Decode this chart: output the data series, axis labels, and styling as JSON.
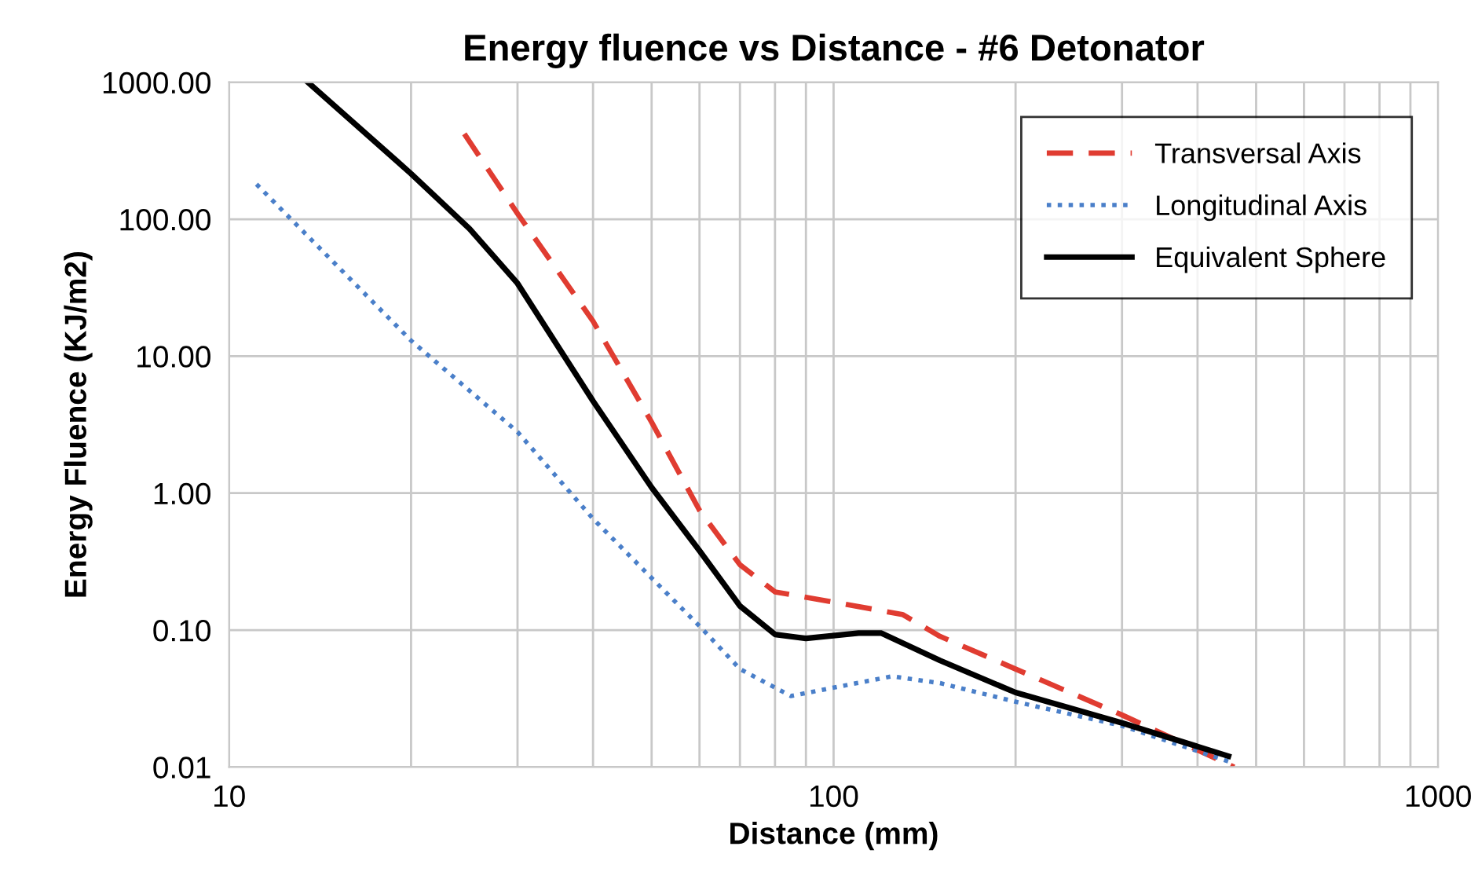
{
  "chart_data": {
    "type": "line",
    "title": "Energy fluence vs Distance - #6 Detonator",
    "xlabel": "Distance (mm)",
    "ylabel": "Energy Fluence (KJ/m2)",
    "log": "xy",
    "grid": true,
    "legend": "top right",
    "xlim": [
      10,
      1000
    ],
    "ylim": [
      0.01,
      1000
    ],
    "xticks": [
      10,
      {
        "value": 20,
        "label": null
      },
      {
        "value": 30,
        "label": null
      },
      {
        "value": 40,
        "label": null
      },
      {
        "value": 50,
        "label": null
      },
      {
        "value": 60,
        "label": null
      },
      {
        "value": 70,
        "label": null
      },
      {
        "value": 80,
        "label": null
      },
      {
        "value": 90,
        "label": null
      },
      100,
      {
        "value": 200,
        "label": null
      },
      {
        "value": 300,
        "label": null
      },
      {
        "value": 400,
        "label": null
      },
      {
        "value": 500,
        "label": null
      },
      {
        "value": 600,
        "label": null
      },
      {
        "value": 700,
        "label": null
      },
      {
        "value": 800,
        "label": null
      },
      {
        "value": 900,
        "label": null
      },
      1000
    ],
    "yticks": [
      {
        "value": 0.01,
        "label": "0.01"
      },
      {
        "value": 0.1,
        "label": "0.10"
      },
      {
        "value": 1,
        "label": "1.00"
      },
      {
        "value": 10,
        "label": "10.00"
      },
      {
        "value": 100,
        "label": "100.00"
      },
      {
        "value": 1000,
        "label": "1000.00"
      }
    ],
    "series": [
      {
        "name": "Transversal Axis",
        "color": "#e03c31",
        "line_style": "dashed",
        "x": [
          24.5,
          30,
          40,
          50,
          60,
          70,
          80,
          100,
          130,
          150,
          200,
          300,
          460
        ],
        "values": [
          420,
          110,
          18,
          3.3,
          0.75,
          0.3,
          0.19,
          0.16,
          0.13,
          0.09,
          0.052,
          0.024,
          0.01
        ]
      },
      {
        "name": "Longitudinal Axis",
        "color": "#4a7fc9",
        "line_style": "dotted",
        "x": [
          11.1,
          20,
          30,
          40,
          50,
          60,
          70,
          85,
          100,
          125,
          150,
          200,
          300,
          450
        ],
        "values": [
          180,
          13,
          2.8,
          0.65,
          0.24,
          0.107,
          0.052,
          0.033,
          0.038,
          0.046,
          0.041,
          0.03,
          0.02,
          0.011
        ]
      },
      {
        "name": "Equivalent Sphere",
        "color": "#000000",
        "line_style": "solid",
        "x": [
          13.5,
          20,
          25,
          30,
          40,
          50,
          60,
          70,
          80,
          90,
          110,
          120,
          150,
          200,
          300,
          450
        ],
        "values": [
          1000,
          215,
          85,
          34,
          4.7,
          1.1,
          0.38,
          0.15,
          0.093,
          0.087,
          0.095,
          0.095,
          0.06,
          0.035,
          0.021,
          0.012
        ]
      }
    ]
  }
}
